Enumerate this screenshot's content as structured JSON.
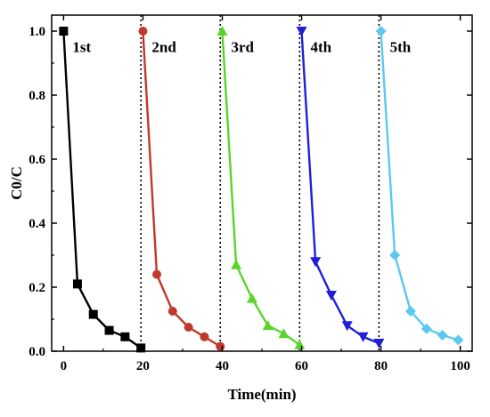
{
  "chart_data": {
    "type": "line",
    "xlabel": "Time(min)",
    "ylabel": "C0/C",
    "xlim": [
      -3,
      103
    ],
    "ylim": [
      0,
      1.05
    ],
    "xticks": [
      0,
      20,
      40,
      60,
      80,
      100
    ],
    "yticks": [
      0.0,
      0.2,
      0.4,
      0.6,
      0.8,
      1.0
    ],
    "xtick_labels": [
      "0",
      "20",
      "40",
      "60",
      "80",
      "100"
    ],
    "ytick_labels": [
      "0.0",
      "0.2",
      "0.4",
      "0.6",
      "0.8",
      "1.0"
    ],
    "grid": false,
    "cycle_dividers_x": [
      19.5,
      39.5,
      59.5,
      79.5
    ],
    "series": [
      {
        "run_label": "1st",
        "color": "#000000",
        "marker": "square",
        "x": [
          0,
          3.5,
          7.5,
          11.5,
          15.5,
          19.5
        ],
        "y": [
          1.0,
          0.21,
          0.115,
          0.065,
          0.045,
          0.01
        ]
      },
      {
        "run_label": "2nd",
        "color": "#c0392b",
        "marker": "circle",
        "x": [
          20,
          23.5,
          27.5,
          31.5,
          35.5,
          39.5
        ],
        "y": [
          1.0,
          0.24,
          0.125,
          0.075,
          0.045,
          0.015
        ]
      },
      {
        "run_label": "3rd",
        "color": "#5ad42a",
        "marker": "triangle-up",
        "x": [
          40,
          43.5,
          47.5,
          51.5,
          55.5,
          59.5
        ],
        "y": [
          1.0,
          0.27,
          0.165,
          0.08,
          0.055,
          0.02
        ]
      },
      {
        "run_label": "4th",
        "color": "#1f1fd6",
        "marker": "triangle-down",
        "x": [
          60,
          63.5,
          67.5,
          71.5,
          75.5,
          79.5
        ],
        "y": [
          1.0,
          0.28,
          0.175,
          0.08,
          0.045,
          0.025
        ]
      },
      {
        "run_label": "5th",
        "color": "#5bc8f0",
        "marker": "diamond",
        "x": [
          80,
          83.5,
          87.5,
          91.5,
          95.5,
          99.5
        ],
        "y": [
          1.0,
          0.3,
          0.125,
          0.07,
          0.05,
          0.035
        ]
      }
    ]
  }
}
